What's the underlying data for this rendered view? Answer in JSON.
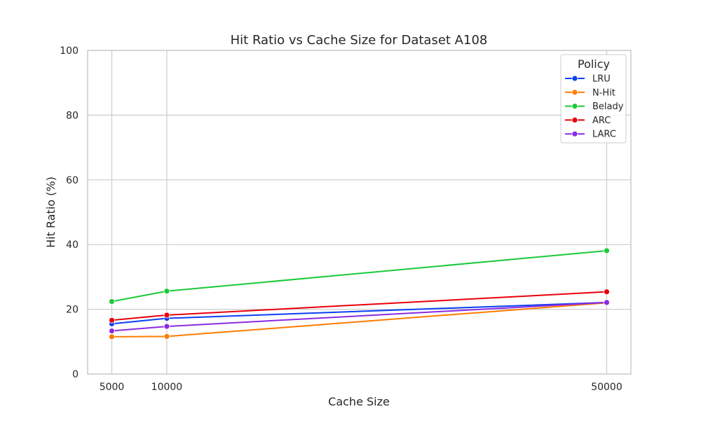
{
  "chart_data": {
    "type": "line",
    "title": "Hit Ratio vs Cache Size for Dataset A108",
    "xlabel": "Cache Size",
    "ylabel": "Hit Ratio (%)",
    "x": [
      5000,
      10000,
      50000
    ],
    "xticks": [
      5000,
      10000,
      50000
    ],
    "xlim": [
      2800,
      52200
    ],
    "ylim": [
      0,
      100
    ],
    "yticks": [
      0,
      20,
      40,
      60,
      80,
      100
    ],
    "grid": true,
    "legend": {
      "title": "Policy",
      "position": "top-right"
    },
    "series": [
      {
        "name": "LRU",
        "color": "#0b3ff2",
        "values": [
          15.5,
          17.2,
          22.1
        ]
      },
      {
        "name": "N-Hit",
        "color": "#ff7c00",
        "values": [
          11.5,
          11.6,
          22.0
        ]
      },
      {
        "name": "Belady",
        "color": "#1ac938",
        "values": [
          22.4,
          25.6,
          38.1
        ]
      },
      {
        "name": "ARC",
        "color": "#e8000b",
        "values": [
          16.6,
          18.2,
          25.4
        ]
      },
      {
        "name": "LARC",
        "color": "#8b2be2",
        "values": [
          13.3,
          14.7,
          22.1
        ]
      }
    ]
  }
}
